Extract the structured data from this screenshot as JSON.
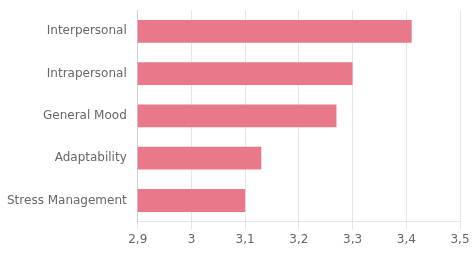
{
  "chart_data": {
    "type": "bar",
    "orientation": "horizontal",
    "categories": [
      "Interpersonal",
      "Intrapersonal",
      "General Mood",
      "Adaptability",
      "Stress Management"
    ],
    "values": [
      3.41,
      3.3,
      3.27,
      3.13,
      3.1
    ],
    "color": "#e8788a",
    "xlim": [
      2.9,
      3.5
    ],
    "xticks": [
      {
        "value": 2.9,
        "label": "2,9"
      },
      3,
      {
        "value": 3.1,
        "label": "3,1"
      },
      {
        "value": 3.2,
        "label": "3,2"
      },
      {
        "value": 3.3,
        "label": "3,3"
      },
      {
        "value": 3.4,
        "label": "3,4"
      },
      {
        "value": 3.5,
        "label": "3,5"
      }
    ],
    "grid": true
  }
}
